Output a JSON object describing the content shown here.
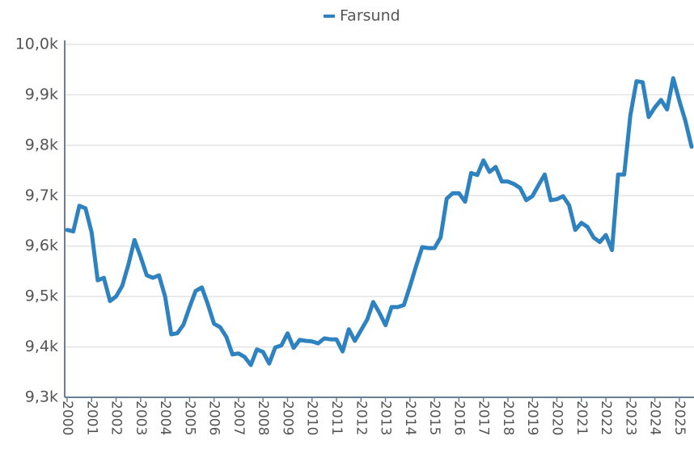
{
  "chart_data": {
    "type": "line",
    "categories": [
      "2000",
      null,
      null,
      null,
      "2001",
      null,
      null,
      null,
      "2002",
      null,
      null,
      null,
      "2003",
      null,
      null,
      null,
      "2004",
      null,
      null,
      null,
      "2005",
      null,
      null,
      null,
      "2006",
      null,
      null,
      null,
      "2007",
      null,
      null,
      null,
      "2008",
      null,
      null,
      null,
      "2009",
      null,
      null,
      null,
      "2010",
      null,
      null,
      null,
      "2011",
      null,
      null,
      null,
      "2012",
      null,
      null,
      null,
      "2013",
      null,
      null,
      null,
      "2014",
      null,
      null,
      null,
      "2015",
      null,
      null,
      null,
      "2016",
      null,
      null,
      null,
      "2017",
      null,
      null,
      null,
      "2018",
      null,
      null,
      null,
      "2019",
      null,
      null,
      null,
      "2020",
      null,
      null,
      null,
      "2021",
      null,
      null,
      null,
      "2022",
      null,
      null,
      null,
      "2023",
      null,
      null,
      null,
      "2024",
      null,
      null,
      null,
      "2025",
      null,
      null
    ],
    "series": [
      {
        "name": "Farsund",
        "color": "#2e82bf",
        "values": [
          9632,
          9629,
          9680,
          9675,
          9627,
          9532,
          9537,
          9491,
          9500,
          9521,
          9563,
          9612,
          9579,
          9542,
          9537,
          9542,
          9500,
          9425,
          9427,
          9444,
          9479,
          9511,
          9518,
          9484,
          9446,
          9439,
          9420,
          9385,
          9387,
          9380,
          9364,
          9395,
          9390,
          9367,
          9399,
          9403,
          9427,
          9398,
          9414,
          9412,
          9411,
          9407,
          9417,
          9415,
          9415,
          9391,
          9435,
          9412,
          9433,
          9454,
          9489,
          9468,
          9443,
          9479,
          9479,
          9483,
          9520,
          9560,
          9598,
          9596,
          9596,
          9617,
          9694,
          9705,
          9705,
          9688,
          9745,
          9741,
          9770,
          9747,
          9757,
          9728,
          9728,
          9723,
          9715,
          9691,
          9699,
          9721,
          9742,
          9691,
          9693,
          9699,
          9681,
          9632,
          9646,
          9638,
          9617,
          9608,
          9622,
          9592,
          9742,
          9742,
          9859,
          9927,
          9925,
          9856,
          9875,
          9890,
          9871,
          9933,
          9888,
          9848,
          9797
        ]
      }
    ],
    "ylim": [
      9300,
      10000
    ],
    "yticks": [
      {
        "value": 9300,
        "label": "9,3k"
      },
      {
        "value": 9400,
        "label": "9,4k"
      },
      {
        "value": 9500,
        "label": "9,5k"
      },
      {
        "value": 9600,
        "label": "9,6k"
      },
      {
        "value": 9700,
        "label": "9,7k"
      },
      {
        "value": 9800,
        "label": "9,8k"
      },
      {
        "value": 9900,
        "label": "9,9k"
      },
      {
        "value": 10000,
        "label": "10,0k"
      }
    ],
    "grid": true,
    "legend": "top"
  }
}
